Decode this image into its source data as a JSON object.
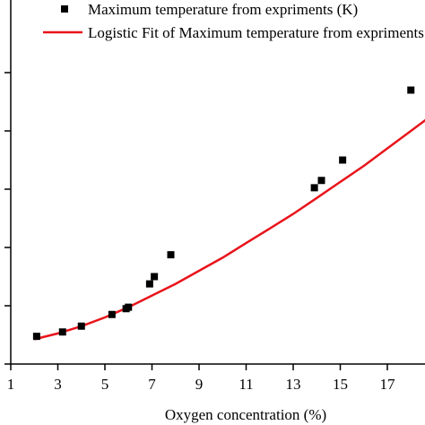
{
  "chart_data": {
    "type": "scatter",
    "title": "",
    "xlabel": "Oxygen concentration (%)",
    "ylabel": "",
    "xlim": [
      1,
      19
    ],
    "ylim": [
      0,
      100
    ],
    "x_ticks": [
      1,
      3,
      5,
      7,
      9,
      11,
      13,
      15,
      17
    ],
    "x_tick_labels": [
      "1",
      "3",
      "5",
      "7",
      "9",
      "11",
      "13",
      "15",
      "17"
    ],
    "y_ticks": [
      0,
      20,
      40,
      60,
      80,
      100
    ],
    "grid": false,
    "legend_position": "top-right",
    "colors": {
      "points": "#000000",
      "fit": "#e8141b",
      "axis": "#000000"
    },
    "series": [
      {
        "name": "Maximum temperature from expriments (K)",
        "kind": "scatter",
        "x": [
          2.1,
          3.2,
          4.0,
          5.3,
          5.9,
          6.0,
          6.9,
          7.1,
          7.8,
          13.9,
          14.2,
          15.1,
          18.0
        ],
        "y": [
          9.5,
          11,
          13,
          17,
          19,
          19.5,
          27.5,
          30,
          37.5,
          60.5,
          63,
          70,
          94
        ]
      },
      {
        "name": "Logistic Fit of Maximum temperature from expriments (K)",
        "kind": "line",
        "x": [
          2,
          3,
          4,
          5,
          6,
          7,
          8,
          9,
          10,
          11,
          12,
          13,
          14,
          15,
          16,
          17,
          18,
          19
        ],
        "y": [
          8.5,
          10.5,
          13,
          16,
          19.5,
          23.5,
          27.5,
          32,
          36.5,
          41.5,
          46.5,
          51.5,
          57,
          62.5,
          68,
          74,
          80,
          86
        ]
      }
    ]
  }
}
